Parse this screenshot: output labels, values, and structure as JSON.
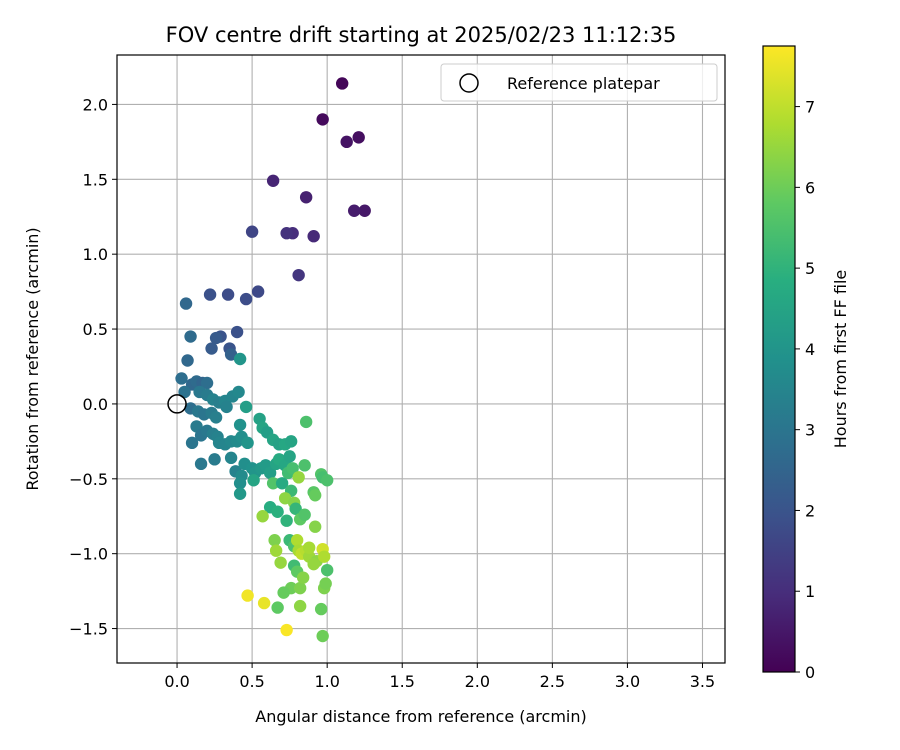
{
  "chart_data": {
    "type": "scatter",
    "title": "FOV centre drift starting at 2025/02/23 11:12:35",
    "xlabel": "Angular distance from reference (arcmin)",
    "ylabel": "Rotation from reference (arcmin)",
    "xlim": [
      -0.4,
      3.65
    ],
    "ylim": [
      -1.73,
      2.33
    ],
    "xticks": [
      0.0,
      0.5,
      1.0,
      1.5,
      2.0,
      2.5,
      3.0,
      3.5
    ],
    "xtick_labels": [
      "0.0",
      "0.5",
      "1.0",
      "1.5",
      "2.0",
      "2.5",
      "3.0",
      "3.5"
    ],
    "yticks": [
      -1.5,
      -1.0,
      -0.5,
      0.0,
      0.5,
      1.0,
      1.5,
      2.0
    ],
    "ytick_labels": [
      "−1.5",
      "−1.0",
      "−0.5",
      "0.0",
      "0.5",
      "1.0",
      "1.5",
      "2.0"
    ],
    "grid": true,
    "legend": {
      "placement": "top-right",
      "entries": [
        "Reference platepar"
      ]
    },
    "reference_point": {
      "x": 0.0,
      "y": 0.0,
      "label": "Reference platepar"
    },
    "colorbar": {
      "label": "Hours from first FF file",
      "range": [
        0,
        7.75
      ],
      "ticks": [
        0,
        1,
        2,
        3,
        4,
        5,
        6,
        7
      ],
      "tick_labels": [
        "0",
        "1",
        "2",
        "3",
        "4",
        "5",
        "6",
        "7"
      ],
      "colormap": "viridis"
    },
    "series": [
      {
        "points": [
          {
            "x": 1.1,
            "y": 2.14,
            "c": 0.1
          },
          {
            "x": 0.97,
            "y": 1.9,
            "c": 0.2
          },
          {
            "x": 1.21,
            "y": 1.78,
            "c": 0.3
          },
          {
            "x": 1.13,
            "y": 1.75,
            "c": 0.4
          },
          {
            "x": 1.25,
            "y": 1.29,
            "c": 0.5
          },
          {
            "x": 1.18,
            "y": 1.29,
            "c": 0.6
          },
          {
            "x": 0.86,
            "y": 1.38,
            "c": 0.7
          },
          {
            "x": 0.64,
            "y": 1.49,
            "c": 0.8
          },
          {
            "x": 0.91,
            "y": 1.12,
            "c": 0.9
          },
          {
            "x": 0.77,
            "y": 1.14,
            "c": 1.0
          },
          {
            "x": 0.73,
            "y": 1.14,
            "c": 1.1
          },
          {
            "x": 0.81,
            "y": 0.86,
            "c": 1.2
          },
          {
            "x": 0.5,
            "y": 1.15,
            "c": 1.6
          },
          {
            "x": 0.54,
            "y": 0.75,
            "c": 1.7
          },
          {
            "x": 0.46,
            "y": 0.7,
            "c": 1.8
          },
          {
            "x": 0.34,
            "y": 0.73,
            "c": 1.8
          },
          {
            "x": 0.22,
            "y": 0.73,
            "c": 1.9
          },
          {
            "x": 0.06,
            "y": 0.67,
            "c": 2.6
          },
          {
            "x": 0.4,
            "y": 0.48,
            "c": 1.9
          },
          {
            "x": 0.29,
            "y": 0.45,
            "c": 2.0
          },
          {
            "x": 0.26,
            "y": 0.44,
            "c": 2.2
          },
          {
            "x": 0.09,
            "y": 0.45,
            "c": 2.7
          },
          {
            "x": 0.35,
            "y": 0.37,
            "c": 2.0
          },
          {
            "x": 0.23,
            "y": 0.37,
            "c": 2.2
          },
          {
            "x": 0.36,
            "y": 0.33,
            "c": 2.4
          },
          {
            "x": 0.07,
            "y": 0.29,
            "c": 2.6
          },
          {
            "x": 0.42,
            "y": 0.3,
            "c": 4.0
          },
          {
            "x": 0.03,
            "y": 0.17,
            "c": 2.8
          },
          {
            "x": 0.1,
            "y": 0.13,
            "c": 2.6
          },
          {
            "x": 0.13,
            "y": 0.15,
            "c": 2.7
          },
          {
            "x": 0.17,
            "y": 0.14,
            "c": 2.5
          },
          {
            "x": 0.2,
            "y": 0.14,
            "c": 2.8
          },
          {
            "x": 0.05,
            "y": 0.08,
            "c": 2.9
          },
          {
            "x": 0.15,
            "y": 0.08,
            "c": 3.1
          },
          {
            "x": 0.2,
            "y": 0.06,
            "c": 3.2
          },
          {
            "x": 0.24,
            "y": 0.03,
            "c": 3.4
          },
          {
            "x": 0.28,
            "y": 0.01,
            "c": 3.3
          },
          {
            "x": 0.32,
            "y": 0.02,
            "c": 3.5
          },
          {
            "x": 0.37,
            "y": 0.05,
            "c": 3.5
          },
          {
            "x": 0.41,
            "y": 0.08,
            "c": 3.6
          },
          {
            "x": 0.33,
            "y": -0.02,
            "c": 3.4
          },
          {
            "x": 0.09,
            "y": -0.03,
            "c": 2.8
          },
          {
            "x": 0.14,
            "y": -0.05,
            "c": 3.1
          },
          {
            "x": 0.18,
            "y": -0.07,
            "c": 3.0
          },
          {
            "x": 0.23,
            "y": -0.06,
            "c": 3.2
          },
          {
            "x": 0.26,
            "y": -0.09,
            "c": 3.3
          },
          {
            "x": 0.46,
            "y": -0.02,
            "c": 4.3
          },
          {
            "x": 0.13,
            "y": -0.15,
            "c": 3.2
          },
          {
            "x": 0.16,
            "y": -0.21,
            "c": 3.0
          },
          {
            "x": 0.2,
            "y": -0.18,
            "c": 3.1
          },
          {
            "x": 0.24,
            "y": -0.2,
            "c": 3.3
          },
          {
            "x": 0.27,
            "y": -0.22,
            "c": 3.4
          },
          {
            "x": 0.28,
            "y": -0.26,
            "c": 3.5
          },
          {
            "x": 0.32,
            "y": -0.27,
            "c": 3.5
          },
          {
            "x": 0.36,
            "y": -0.25,
            "c": 3.6
          },
          {
            "x": 0.4,
            "y": -0.25,
            "c": 3.7
          },
          {
            "x": 0.43,
            "y": -0.22,
            "c": 3.8
          },
          {
            "x": 0.47,
            "y": -0.26,
            "c": 4.0
          },
          {
            "x": 0.42,
            "y": -0.14,
            "c": 3.9
          },
          {
            "x": 0.55,
            "y": -0.1,
            "c": 4.4
          },
          {
            "x": 0.57,
            "y": -0.16,
            "c": 4.5
          },
          {
            "x": 0.6,
            "y": -0.19,
            "c": 4.3
          },
          {
            "x": 0.64,
            "y": -0.24,
            "c": 4.5
          },
          {
            "x": 0.68,
            "y": -0.27,
            "c": 4.4
          },
          {
            "x": 0.72,
            "y": -0.27,
            "c": 4.6
          },
          {
            "x": 0.76,
            "y": -0.25,
            "c": 4.5
          },
          {
            "x": 0.86,
            "y": -0.12,
            "c": 5.5
          },
          {
            "x": 0.1,
            "y": -0.26,
            "c": 3.0
          },
          {
            "x": 0.25,
            "y": -0.37,
            "c": 3.2
          },
          {
            "x": 0.16,
            "y": -0.4,
            "c": 3.1
          },
          {
            "x": 0.36,
            "y": -0.36,
            "c": 3.5
          },
          {
            "x": 0.39,
            "y": -0.45,
            "c": 3.4
          },
          {
            "x": 0.43,
            "y": -0.48,
            "c": 3.7
          },
          {
            "x": 0.45,
            "y": -0.4,
            "c": 3.8
          },
          {
            "x": 0.5,
            "y": -0.43,
            "c": 3.9
          },
          {
            "x": 0.52,
            "y": -0.46,
            "c": 4.0
          },
          {
            "x": 0.56,
            "y": -0.43,
            "c": 4.1
          },
          {
            "x": 0.59,
            "y": -0.41,
            "c": 4.2
          },
          {
            "x": 0.62,
            "y": -0.46,
            "c": 4.3
          },
          {
            "x": 0.66,
            "y": -0.4,
            "c": 4.5
          },
          {
            "x": 0.68,
            "y": -0.37,
            "c": 4.7
          },
          {
            "x": 0.72,
            "y": -0.41,
            "c": 4.6
          },
          {
            "x": 0.75,
            "y": -0.35,
            "c": 4.5
          },
          {
            "x": 0.42,
            "y": -0.53,
            "c": 3.8
          },
          {
            "x": 0.42,
            "y": -0.6,
            "c": 4.1
          },
          {
            "x": 0.51,
            "y": -0.51,
            "c": 4.5
          },
          {
            "x": 0.64,
            "y": -0.53,
            "c": 5.6
          },
          {
            "x": 0.7,
            "y": -0.53,
            "c": 4.7
          },
          {
            "x": 0.74,
            "y": -0.46,
            "c": 5.3
          },
          {
            "x": 0.77,
            "y": -0.43,
            "c": 5.4
          },
          {
            "x": 0.81,
            "y": -0.49,
            "c": 6.5
          },
          {
            "x": 0.85,
            "y": -0.41,
            "c": 5.5
          },
          {
            "x": 0.76,
            "y": -0.58,
            "c": 5.2
          },
          {
            "x": 0.72,
            "y": -0.63,
            "c": 6.4
          },
          {
            "x": 0.78,
            "y": -0.66,
            "c": 6.3
          },
          {
            "x": 0.62,
            "y": -0.69,
            "c": 4.8
          },
          {
            "x": 0.67,
            "y": -0.72,
            "c": 4.9
          },
          {
            "x": 0.73,
            "y": -0.78,
            "c": 5.0
          },
          {
            "x": 0.79,
            "y": -0.7,
            "c": 5.1
          },
          {
            "x": 0.82,
            "y": -0.77,
            "c": 5.8
          },
          {
            "x": 0.85,
            "y": -0.74,
            "c": 5.6
          },
          {
            "x": 0.91,
            "y": -0.59,
            "c": 5.7
          },
          {
            "x": 0.92,
            "y": -0.61,
            "c": 5.9
          },
          {
            "x": 0.96,
            "y": -0.47,
            "c": 5.6
          },
          {
            "x": 0.97,
            "y": -0.49,
            "c": 5.4
          },
          {
            "x": 1.0,
            "y": -0.51,
            "c": 5.5
          },
          {
            "x": 0.57,
            "y": -0.75,
            "c": 6.5
          },
          {
            "x": 0.65,
            "y": -0.91,
            "c": 6.2
          },
          {
            "x": 0.66,
            "y": -0.98,
            "c": 6.6
          },
          {
            "x": 0.69,
            "y": -1.06,
            "c": 6.5
          },
          {
            "x": 0.75,
            "y": -0.91,
            "c": 5.2
          },
          {
            "x": 0.78,
            "y": -0.95,
            "c": 5.5
          },
          {
            "x": 0.8,
            "y": -0.91,
            "c": 6.8
          },
          {
            "x": 0.81,
            "y": -0.98,
            "c": 6.7
          },
          {
            "x": 0.83,
            "y": -1.0,
            "c": 7.0
          },
          {
            "x": 0.86,
            "y": -0.98,
            "c": 6.9
          },
          {
            "x": 0.88,
            "y": -1.02,
            "c": 6.6
          },
          {
            "x": 0.92,
            "y": -0.82,
            "c": 6.3
          },
          {
            "x": 0.93,
            "y": -1.05,
            "c": 6.4
          },
          {
            "x": 0.91,
            "y": -1.07,
            "c": 6.5
          },
          {
            "x": 0.88,
            "y": -0.96,
            "c": 6.7
          },
          {
            "x": 0.97,
            "y": -0.97,
            "c": 7.2
          },
          {
            "x": 0.98,
            "y": -1.02,
            "c": 6.8
          },
          {
            "x": 1.0,
            "y": -1.11,
            "c": 5.5
          },
          {
            "x": 0.78,
            "y": -1.08,
            "c": 5.3
          },
          {
            "x": 0.8,
            "y": -1.12,
            "c": 5.8
          },
          {
            "x": 0.76,
            "y": -1.23,
            "c": 6.0
          },
          {
            "x": 0.71,
            "y": -1.26,
            "c": 5.9
          },
          {
            "x": 0.67,
            "y": -1.36,
            "c": 5.8
          },
          {
            "x": 0.82,
            "y": -1.23,
            "c": 6.2
          },
          {
            "x": 0.82,
            "y": -1.35,
            "c": 6.4
          },
          {
            "x": 0.84,
            "y": -1.16,
            "c": 6.3
          },
          {
            "x": 0.96,
            "y": -1.37,
            "c": 5.9
          },
          {
            "x": 0.97,
            "y": -1.55,
            "c": 6.0
          },
          {
            "x": 0.98,
            "y": -1.23,
            "c": 6.2
          },
          {
            "x": 0.99,
            "y": -1.2,
            "c": 6.1
          },
          {
            "x": 0.47,
            "y": -1.28,
            "c": 7.6
          },
          {
            "x": 0.58,
            "y": -1.33,
            "c": 7.5
          },
          {
            "x": 0.73,
            "y": -1.51,
            "c": 7.7
          }
        ]
      }
    ]
  }
}
